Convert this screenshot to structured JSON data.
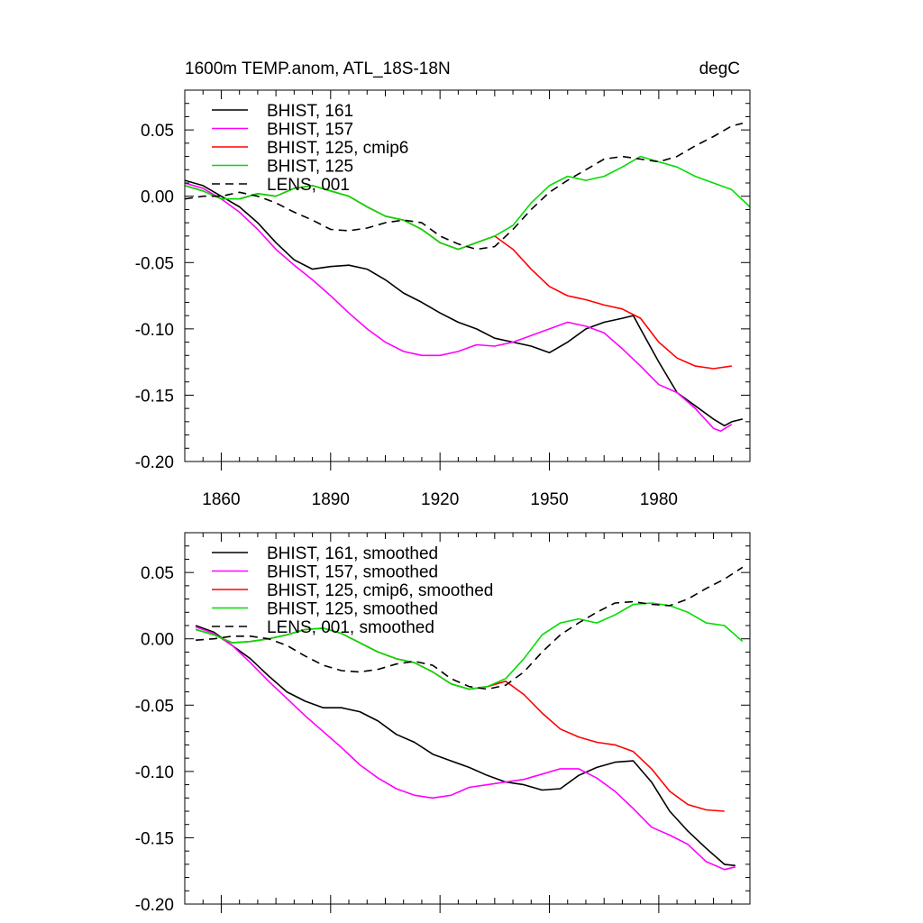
{
  "chart_data": [
    {
      "type": "line",
      "title": "1600m TEMP.anom, ATL_18S-18N",
      "units": "degC",
      "xlim": [
        1850,
        2005
      ],
      "ylim": [
        -0.2,
        0.08
      ],
      "xticks": [
        1860,
        1890,
        1920,
        1950,
        1980
      ],
      "xtick_labels": [
        "1860",
        "1890",
        "1920",
        "1950",
        "1980"
      ],
      "yticks": [
        -0.2,
        -0.15,
        -0.1,
        -0.05,
        0.0,
        0.05
      ],
      "ytick_labels": [
        "-0.20",
        "-0.15",
        "-0.10",
        "-0.05",
        "0.00",
        "0.05"
      ],
      "legend_position": "top-left",
      "grid": false,
      "series": [
        {
          "name": "BHIST, 161",
          "color": "#000000",
          "dash": "solid",
          "x": [
            1850,
            1855,
            1860,
            1865,
            1870,
            1875,
            1880,
            1885,
            1890,
            1895,
            1900,
            1905,
            1910,
            1915,
            1920,
            1925,
            1930,
            1935,
            1940,
            1945,
            1950,
            1955,
            1960,
            1965,
            1970,
            1973,
            1975,
            1980,
            1985,
            1990,
            1995,
            1998,
            2000,
            2003
          ],
          "y": [
            0.012,
            0.008,
            0.0,
            -0.008,
            -0.02,
            -0.035,
            -0.048,
            -0.055,
            -0.053,
            -0.052,
            -0.055,
            -0.063,
            -0.073,
            -0.08,
            -0.088,
            -0.095,
            -0.1,
            -0.107,
            -0.11,
            -0.113,
            -0.118,
            -0.11,
            -0.1,
            -0.095,
            -0.092,
            -0.09,
            -0.1,
            -0.125,
            -0.148,
            -0.158,
            -0.168,
            -0.173,
            -0.17,
            -0.168
          ]
        },
        {
          "name": "BHIST, 157",
          "color": "#ff00ff",
          "dash": "solid",
          "x": [
            1850,
            1855,
            1860,
            1865,
            1870,
            1875,
            1880,
            1885,
            1890,
            1895,
            1900,
            1905,
            1910,
            1915,
            1920,
            1925,
            1930,
            1935,
            1940,
            1945,
            1950,
            1955,
            1960,
            1965,
            1970,
            1975,
            1980,
            1985,
            1990,
            1995,
            1997,
            2000
          ],
          "y": [
            0.01,
            0.006,
            -0.002,
            -0.012,
            -0.025,
            -0.04,
            -0.052,
            -0.063,
            -0.075,
            -0.088,
            -0.1,
            -0.11,
            -0.117,
            -0.12,
            -0.12,
            -0.117,
            -0.112,
            -0.113,
            -0.11,
            -0.105,
            -0.1,
            -0.095,
            -0.098,
            -0.103,
            -0.115,
            -0.128,
            -0.142,
            -0.148,
            -0.16,
            -0.175,
            -0.177,
            -0.172
          ]
        },
        {
          "name": "BHIST, 125, cmip6",
          "color": "#ff0000",
          "dash": "solid",
          "x": [
            1850,
            1855,
            1860,
            1865,
            1870,
            1875,
            1880,
            1885,
            1890,
            1895,
            1900,
            1905,
            1910,
            1915,
            1920,
            1925,
            1930,
            1935,
            1940,
            1945,
            1950,
            1955,
            1960,
            1965,
            1970,
            1975,
            1980,
            1985,
            1990,
            1995,
            2000
          ],
          "y": [
            0.008,
            0.004,
            -0.002,
            -0.002,
            0.002,
            0.0,
            0.006,
            0.008,
            0.004,
            0.0,
            -0.008,
            -0.015,
            -0.018,
            -0.025,
            -0.035,
            -0.04,
            -0.035,
            -0.03,
            -0.04,
            -0.055,
            -0.068,
            -0.075,
            -0.078,
            -0.082,
            -0.085,
            -0.092,
            -0.11,
            -0.122,
            -0.128,
            -0.13,
            -0.128
          ]
        },
        {
          "name": "BHIST, 125",
          "color": "#00dd00",
          "dash": "solid",
          "x": [
            1850,
            1855,
            1860,
            1865,
            1870,
            1875,
            1880,
            1885,
            1890,
            1895,
            1900,
            1905,
            1910,
            1915,
            1920,
            1925,
            1930,
            1935,
            1940,
            1945,
            1950,
            1955,
            1960,
            1965,
            1970,
            1975,
            1980,
            1985,
            1990,
            1995,
            2000,
            2005
          ],
          "y": [
            0.008,
            0.004,
            -0.002,
            -0.002,
            0.002,
            0.0,
            0.006,
            0.008,
            0.004,
            0.0,
            -0.008,
            -0.015,
            -0.018,
            -0.025,
            -0.035,
            -0.04,
            -0.035,
            -0.03,
            -0.022,
            -0.005,
            0.008,
            0.015,
            0.012,
            0.015,
            0.022,
            0.03,
            0.026,
            0.022,
            0.015,
            0.01,
            0.005,
            -0.008
          ]
        },
        {
          "name": "LENS, 001",
          "color": "#000000",
          "dash": "dashed",
          "x": [
            1850,
            1855,
            1860,
            1865,
            1870,
            1875,
            1880,
            1885,
            1890,
            1895,
            1900,
            1905,
            1910,
            1915,
            1920,
            1925,
            1930,
            1935,
            1940,
            1945,
            1950,
            1955,
            1960,
            1965,
            1970,
            1975,
            1980,
            1985,
            1990,
            1995,
            2000,
            2003
          ],
          "y": [
            -0.002,
            0.0,
            0.0,
            0.003,
            0.0,
            -0.005,
            -0.012,
            -0.018,
            -0.025,
            -0.026,
            -0.024,
            -0.02,
            -0.018,
            -0.02,
            -0.03,
            -0.036,
            -0.04,
            -0.038,
            -0.025,
            -0.01,
            0.003,
            0.012,
            0.02,
            0.028,
            0.03,
            0.028,
            0.026,
            0.03,
            0.038,
            0.045,
            0.053,
            0.055
          ]
        }
      ]
    },
    {
      "type": "line",
      "title": "",
      "units": "",
      "xlim": [
        1850,
        2005
      ],
      "ylim": [
        -0.2,
        0.08
      ],
      "xticks": [
        1860,
        1890,
        1920,
        1950,
        1980
      ],
      "xtick_labels": [],
      "yticks": [
        -0.2,
        -0.15,
        -0.1,
        -0.05,
        0.0,
        0.05
      ],
      "ytick_labels": [
        "-0.20",
        "-0.15",
        "-0.10",
        "-0.05",
        "0.00",
        "0.05"
      ],
      "legend_position": "top-left",
      "grid": false,
      "series": [
        {
          "name": "BHIST, 161, smoothed",
          "color": "#000000",
          "dash": "solid",
          "x": [
            1853,
            1858,
            1863,
            1868,
            1873,
            1878,
            1883,
            1888,
            1893,
            1898,
            1903,
            1908,
            1913,
            1918,
            1923,
            1928,
            1933,
            1938,
            1943,
            1948,
            1953,
            1958,
            1963,
            1968,
            1973,
            1978,
            1983,
            1988,
            1993,
            1998,
            2001
          ],
          "y": [
            0.01,
            0.005,
            -0.005,
            -0.015,
            -0.028,
            -0.04,
            -0.047,
            -0.052,
            -0.052,
            -0.055,
            -0.062,
            -0.072,
            -0.078,
            -0.087,
            -0.092,
            -0.097,
            -0.103,
            -0.108,
            -0.11,
            -0.114,
            -0.113,
            -0.103,
            -0.097,
            -0.093,
            -0.092,
            -0.108,
            -0.13,
            -0.145,
            -0.158,
            -0.17,
            -0.171
          ]
        },
        {
          "name": "BHIST, 157, smoothed",
          "color": "#ff00ff",
          "dash": "solid",
          "x": [
            1853,
            1858,
            1863,
            1868,
            1873,
            1878,
            1883,
            1888,
            1893,
            1898,
            1903,
            1908,
            1913,
            1918,
            1923,
            1928,
            1933,
            1938,
            1943,
            1948,
            1953,
            1958,
            1963,
            1968,
            1973,
            1978,
            1983,
            1988,
            1993,
            1998,
            2001
          ],
          "y": [
            0.009,
            0.004,
            -0.005,
            -0.018,
            -0.032,
            -0.045,
            -0.058,
            -0.07,
            -0.082,
            -0.095,
            -0.105,
            -0.113,
            -0.118,
            -0.12,
            -0.118,
            -0.112,
            -0.11,
            -0.108,
            -0.106,
            -0.102,
            -0.098,
            -0.098,
            -0.105,
            -0.115,
            -0.128,
            -0.142,
            -0.148,
            -0.155,
            -0.168,
            -0.174,
            -0.172
          ]
        },
        {
          "name": "BHIST, 125, cmip6, smoothed",
          "color": "#ff0000",
          "dash": "solid",
          "x": [
            1853,
            1858,
            1863,
            1868,
            1873,
            1878,
            1883,
            1888,
            1893,
            1898,
            1903,
            1908,
            1913,
            1918,
            1923,
            1928,
            1933,
            1938,
            1943,
            1948,
            1953,
            1958,
            1963,
            1968,
            1973,
            1978,
            1983,
            1988,
            1993,
            1998
          ],
          "y": [
            0.007,
            0.003,
            -0.003,
            -0.002,
            0.0,
            0.003,
            0.007,
            0.008,
            0.004,
            -0.003,
            -0.01,
            -0.015,
            -0.018,
            -0.025,
            -0.034,
            -0.038,
            -0.036,
            -0.032,
            -0.042,
            -0.056,
            -0.068,
            -0.074,
            -0.078,
            -0.08,
            -0.085,
            -0.098,
            -0.115,
            -0.125,
            -0.129,
            -0.13
          ]
        },
        {
          "name": "BHIST, 125, smoothed",
          "color": "#00dd00",
          "dash": "solid",
          "x": [
            1853,
            1858,
            1863,
            1868,
            1873,
            1878,
            1883,
            1888,
            1893,
            1898,
            1903,
            1908,
            1913,
            1918,
            1923,
            1928,
            1933,
            1938,
            1943,
            1948,
            1953,
            1958,
            1963,
            1968,
            1973,
            1978,
            1983,
            1988,
            1993,
            1998,
            2003
          ],
          "y": [
            0.007,
            0.003,
            -0.003,
            -0.002,
            0.0,
            0.003,
            0.007,
            0.008,
            0.004,
            -0.003,
            -0.01,
            -0.015,
            -0.018,
            -0.025,
            -0.034,
            -0.038,
            -0.036,
            -0.03,
            -0.015,
            0.003,
            0.012,
            0.015,
            0.012,
            0.018,
            0.026,
            0.027,
            0.025,
            0.02,
            0.012,
            0.01,
            -0.002
          ]
        },
        {
          "name": "LENS, 001, smoothed",
          "color": "#000000",
          "dash": "dashed",
          "x": [
            1853,
            1858,
            1863,
            1868,
            1873,
            1878,
            1883,
            1888,
            1893,
            1898,
            1903,
            1908,
            1913,
            1918,
            1923,
            1928,
            1933,
            1938,
            1943,
            1948,
            1953,
            1958,
            1963,
            1968,
            1973,
            1978,
            1983,
            1988,
            1993,
            1998,
            2003
          ],
          "y": [
            -0.001,
            0.0,
            0.002,
            0.002,
            0.0,
            -0.005,
            -0.013,
            -0.02,
            -0.024,
            -0.025,
            -0.023,
            -0.019,
            -0.017,
            -0.02,
            -0.03,
            -0.036,
            -0.038,
            -0.035,
            -0.025,
            -0.01,
            0.003,
            0.012,
            0.02,
            0.027,
            0.028,
            0.026,
            0.025,
            0.03,
            0.038,
            0.045,
            0.054
          ]
        }
      ]
    }
  ]
}
